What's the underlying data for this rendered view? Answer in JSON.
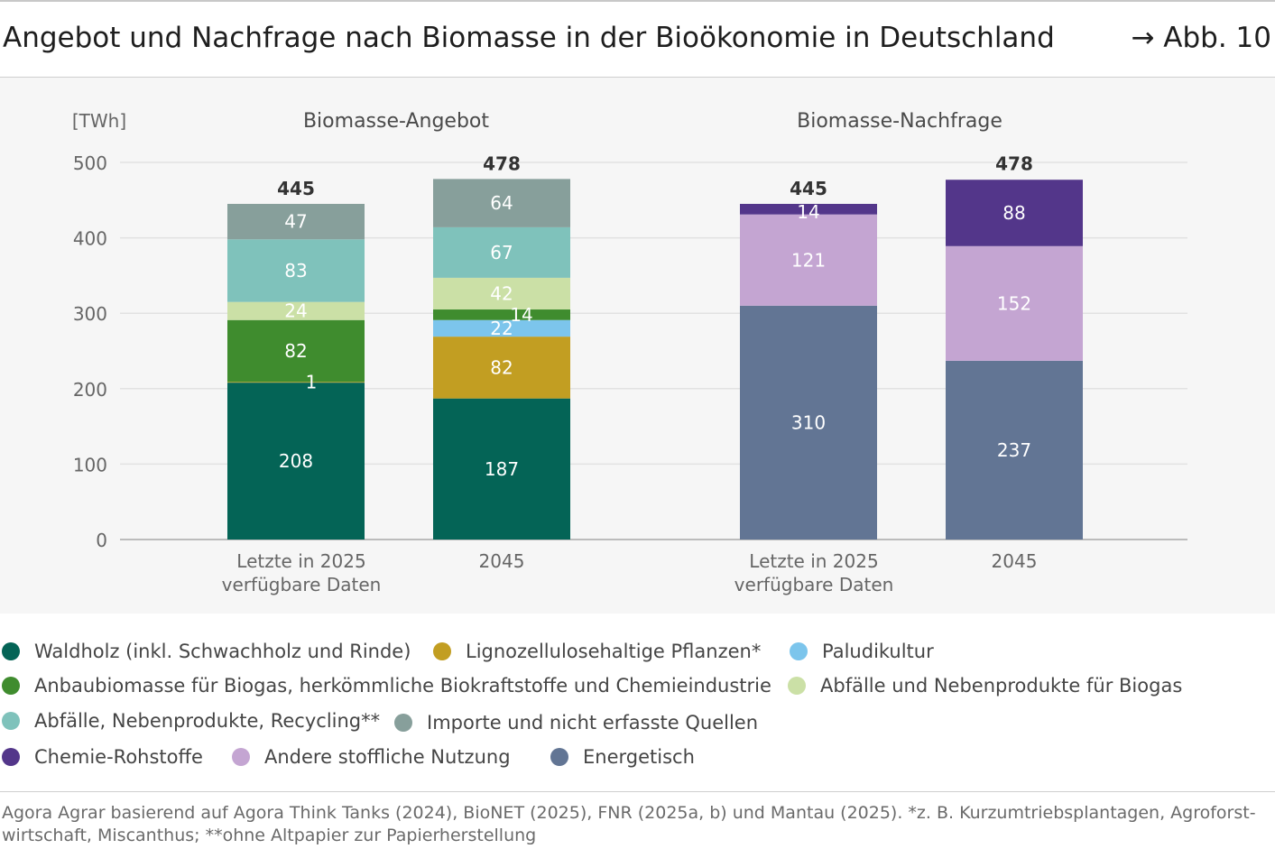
{
  "header": {
    "title": "Angebot und Nachfrage nach Biomasse in der Bioökonomie in Deutschland",
    "figure_ref": "→ Abb. 10"
  },
  "chart_data": {
    "type": "bar",
    "stacked": true,
    "unit_label": "[TWh]",
    "ylim": [
      0,
      500
    ],
    "yticks": [
      0,
      100,
      200,
      300,
      400,
      500
    ],
    "grid": true,
    "groups": [
      {
        "title": "Biomasse-Angebot",
        "bars": [
          {
            "label": [
              "Letzte in 2025",
              "verfügbare Daten"
            ],
            "total": 445,
            "segments": [
              {
                "series": "waldholz",
                "value": 208,
                "label": "208"
              },
              {
                "series": "ligno",
                "value": 1,
                "label": "1"
              },
              {
                "series": "anbau",
                "value": 82,
                "label": "82"
              },
              {
                "series": "abf_biogas",
                "value": 24,
                "label": "24"
              },
              {
                "series": "abf_recycling",
                "value": 83,
                "label": "83"
              },
              {
                "series": "importe",
                "value": 47,
                "label": "47"
              }
            ]
          },
          {
            "label": [
              "2045"
            ],
            "total": 478,
            "segments": [
              {
                "series": "waldholz",
                "value": 187,
                "label": "187"
              },
              {
                "series": "ligno",
                "value": 82,
                "label": "82"
              },
              {
                "series": "paludi",
                "value": 22,
                "label": "22"
              },
              {
                "series": "anbau",
                "value": 14,
                "label": "14"
              },
              {
                "series": "abf_biogas",
                "value": 42,
                "label": "42"
              },
              {
                "series": "abf_recycling",
                "value": 67,
                "label": "67"
              },
              {
                "series": "importe",
                "value": 64,
                "label": "64"
              }
            ]
          }
        ]
      },
      {
        "title": "Biomasse-Nachfrage",
        "bars": [
          {
            "label": [
              "Letzte in 2025",
              "verfügbare Daten"
            ],
            "total": 445,
            "segments": [
              {
                "series": "energetisch",
                "value": 310,
                "label": "310"
              },
              {
                "series": "andere",
                "value": 121,
                "label": "121"
              },
              {
                "series": "chemie",
                "value": 14,
                "label": "14"
              }
            ]
          },
          {
            "label": [
              "2045"
            ],
            "total": 478,
            "segments": [
              {
                "series": "energetisch",
                "value": 237,
                "label": "237"
              },
              {
                "series": "andere",
                "value": 152,
                "label": "152"
              },
              {
                "series": "chemie",
                "value": 88,
                "label": "88"
              }
            ]
          }
        ]
      }
    ],
    "series": [
      {
        "id": "waldholz",
        "name": "Waldholz (inkl. Schwachholz und Rinde)",
        "color": "#046456"
      },
      {
        "id": "ligno",
        "name": "Lignozellulosehaltige Pflanzen*",
        "color": "#c29e22"
      },
      {
        "id": "paludi",
        "name": "Paludikultur",
        "color": "#7cc5ec"
      },
      {
        "id": "anbau",
        "name": "Anbaubiomasse für Biogas, herkömmliche Biokraftstoffe und Chemieindustrie",
        "color": "#3f8c2e"
      },
      {
        "id": "abf_biogas",
        "name": "Abfälle und Nebenprodukte für Biogas",
        "color": "#cbe0a6"
      },
      {
        "id": "abf_recycling",
        "name": "Abfälle, Nebenprodukte, Recycling**",
        "color": "#7fc2bb"
      },
      {
        "id": "importe",
        "name": "Importe und nicht erfasste Quellen",
        "color": "#879f9b"
      },
      {
        "id": "chemie",
        "name": "Chemie-Rohstoffe",
        "color": "#53368a"
      },
      {
        "id": "andere",
        "name": "Andere stoffliche Nutzung",
        "color": "#c4a5d2"
      },
      {
        "id": "energetisch",
        "name": "Energetisch",
        "color": "#627594"
      }
    ]
  },
  "colors": {
    "bar_label_light": "#ffffff",
    "axis_text": "#666666",
    "total_text": "#333333",
    "gridline": "#e2e2e2",
    "baseline": "#a8a8a8"
  },
  "source": "Agora Agrar basierend auf Agora Think Tanks (2024), BioNET (2025), FNR (2025a, b) und Mantau (2025). *z. B. Kurzumtriebsplantagen, Agroforst-wirtschaft, Miscanthus; **ohne Altpapier zur Papierherstellung"
}
